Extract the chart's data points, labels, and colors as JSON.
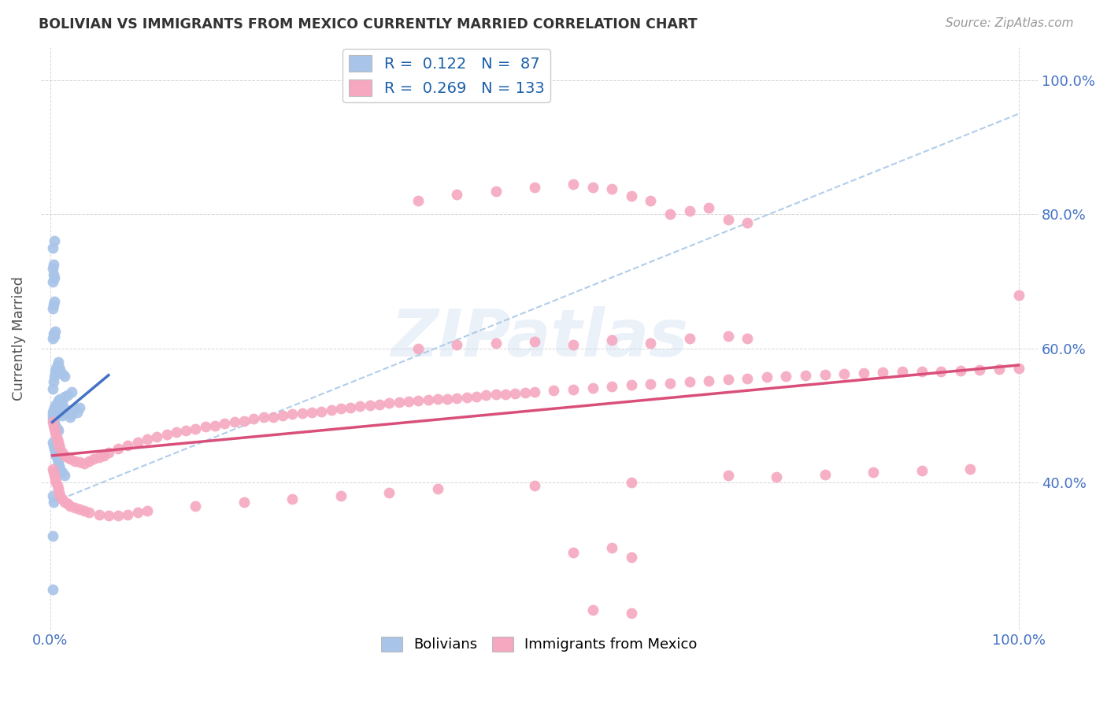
{
  "title": "BOLIVIAN VS IMMIGRANTS FROM MEXICO CURRENTLY MARRIED CORRELATION CHART",
  "source": "Source: ZipAtlas.com",
  "ylabel": "Currently Married",
  "legend_1_label": "Bolivians",
  "legend_2_label": "Immigrants from Mexico",
  "R1": 0.122,
  "N1": 87,
  "R2": 0.269,
  "N2": 133,
  "color_blue": "#a8c4e8",
  "color_pink": "#f5a8c0",
  "line_blue": "#4472c4",
  "line_pink": "#d94f7a",
  "line_dash_color": "#a8c8e8",
  "watermark": "ZIPatlas",
  "xlim": [
    0.0,
    1.0
  ],
  "ylim": [
    0.18,
    1.05
  ],
  "x_ticks": [
    0.0,
    1.0
  ],
  "y_ticks": [
    0.4,
    0.6,
    0.8,
    1.0
  ],
  "blue_scatter": [
    [
      0.002,
      0.5
    ],
    [
      0.003,
      0.505
    ],
    [
      0.004,
      0.512
    ],
    [
      0.005,
      0.498
    ],
    [
      0.006,
      0.51
    ],
    [
      0.007,
      0.505
    ],
    [
      0.008,
      0.502
    ],
    [
      0.009,
      0.515
    ],
    [
      0.01,
      0.508
    ],
    [
      0.012,
      0.5
    ],
    [
      0.015,
      0.51
    ],
    [
      0.018,
      0.505
    ],
    [
      0.02,
      0.498
    ],
    [
      0.022,
      0.502
    ],
    [
      0.025,
      0.51
    ],
    [
      0.028,
      0.505
    ],
    [
      0.03,
      0.512
    ],
    [
      0.002,
      0.495
    ],
    [
      0.003,
      0.49
    ],
    [
      0.004,
      0.488
    ],
    [
      0.005,
      0.485
    ],
    [
      0.006,
      0.482
    ],
    [
      0.007,
      0.48
    ],
    [
      0.008,
      0.478
    ],
    [
      0.002,
      0.505
    ],
    [
      0.003,
      0.508
    ],
    [
      0.004,
      0.502
    ],
    [
      0.005,
      0.515
    ],
    [
      0.006,
      0.512
    ],
    [
      0.007,
      0.518
    ],
    [
      0.008,
      0.522
    ],
    [
      0.01,
      0.525
    ],
    [
      0.012,
      0.52
    ],
    [
      0.015,
      0.528
    ],
    [
      0.018,
      0.53
    ],
    [
      0.022,
      0.535
    ],
    [
      0.002,
      0.54
    ],
    [
      0.003,
      0.55
    ],
    [
      0.004,
      0.558
    ],
    [
      0.005,
      0.565
    ],
    [
      0.006,
      0.57
    ],
    [
      0.007,
      0.575
    ],
    [
      0.008,
      0.58
    ],
    [
      0.009,
      0.572
    ],
    [
      0.01,
      0.568
    ],
    [
      0.012,
      0.562
    ],
    [
      0.015,
      0.558
    ],
    [
      0.002,
      0.615
    ],
    [
      0.003,
      0.622
    ],
    [
      0.004,
      0.618
    ],
    [
      0.005,
      0.625
    ],
    [
      0.002,
      0.66
    ],
    [
      0.003,
      0.665
    ],
    [
      0.004,
      0.67
    ],
    [
      0.002,
      0.7
    ],
    [
      0.003,
      0.71
    ],
    [
      0.004,
      0.705
    ],
    [
      0.002,
      0.72
    ],
    [
      0.003,
      0.725
    ],
    [
      0.002,
      0.75
    ],
    [
      0.004,
      0.76
    ],
    [
      0.002,
      0.46
    ],
    [
      0.003,
      0.455
    ],
    [
      0.004,
      0.45
    ],
    [
      0.005,
      0.445
    ],
    [
      0.006,
      0.44
    ],
    [
      0.007,
      0.435
    ],
    [
      0.008,
      0.43
    ],
    [
      0.009,
      0.425
    ],
    [
      0.01,
      0.42
    ],
    [
      0.012,
      0.415
    ],
    [
      0.015,
      0.41
    ],
    [
      0.002,
      0.38
    ],
    [
      0.003,
      0.37
    ],
    [
      0.002,
      0.32
    ],
    [
      0.002,
      0.24
    ]
  ],
  "pink_scatter": [
    [
      0.002,
      0.49
    ],
    [
      0.003,
      0.485
    ],
    [
      0.004,
      0.48
    ],
    [
      0.005,
      0.475
    ],
    [
      0.006,
      0.47
    ],
    [
      0.007,
      0.465
    ],
    [
      0.008,
      0.46
    ],
    [
      0.009,
      0.455
    ],
    [
      0.01,
      0.45
    ],
    [
      0.012,
      0.445
    ],
    [
      0.015,
      0.44
    ],
    [
      0.018,
      0.438
    ],
    [
      0.02,
      0.435
    ],
    [
      0.025,
      0.432
    ],
    [
      0.03,
      0.43
    ],
    [
      0.035,
      0.428
    ],
    [
      0.04,
      0.432
    ],
    [
      0.045,
      0.435
    ],
    [
      0.05,
      0.438
    ],
    [
      0.055,
      0.44
    ],
    [
      0.06,
      0.445
    ],
    [
      0.07,
      0.45
    ],
    [
      0.08,
      0.455
    ],
    [
      0.09,
      0.46
    ],
    [
      0.1,
      0.465
    ],
    [
      0.11,
      0.468
    ],
    [
      0.12,
      0.472
    ],
    [
      0.13,
      0.475
    ],
    [
      0.14,
      0.478
    ],
    [
      0.15,
      0.48
    ],
    [
      0.16,
      0.483
    ],
    [
      0.17,
      0.485
    ],
    [
      0.18,
      0.488
    ],
    [
      0.19,
      0.49
    ],
    [
      0.2,
      0.492
    ],
    [
      0.21,
      0.495
    ],
    [
      0.22,
      0.497
    ],
    [
      0.23,
      0.498
    ],
    [
      0.24,
      0.5
    ],
    [
      0.25,
      0.502
    ],
    [
      0.26,
      0.503
    ],
    [
      0.27,
      0.505
    ],
    [
      0.28,
      0.506
    ],
    [
      0.29,
      0.508
    ],
    [
      0.3,
      0.51
    ],
    [
      0.31,
      0.512
    ],
    [
      0.32,
      0.514
    ],
    [
      0.33,
      0.515
    ],
    [
      0.34,
      0.516
    ],
    [
      0.35,
      0.518
    ],
    [
      0.36,
      0.52
    ],
    [
      0.37,
      0.521
    ],
    [
      0.38,
      0.522
    ],
    [
      0.39,
      0.523
    ],
    [
      0.4,
      0.524
    ],
    [
      0.41,
      0.525
    ],
    [
      0.42,
      0.526
    ],
    [
      0.43,
      0.527
    ],
    [
      0.44,
      0.528
    ],
    [
      0.45,
      0.53
    ],
    [
      0.46,
      0.531
    ],
    [
      0.47,
      0.532
    ],
    [
      0.48,
      0.533
    ],
    [
      0.49,
      0.534
    ],
    [
      0.5,
      0.535
    ],
    [
      0.52,
      0.537
    ],
    [
      0.54,
      0.539
    ],
    [
      0.56,
      0.541
    ],
    [
      0.58,
      0.543
    ],
    [
      0.6,
      0.545
    ],
    [
      0.62,
      0.547
    ],
    [
      0.64,
      0.548
    ],
    [
      0.66,
      0.55
    ],
    [
      0.68,
      0.552
    ],
    [
      0.7,
      0.554
    ],
    [
      0.72,
      0.555
    ],
    [
      0.74,
      0.557
    ],
    [
      0.76,
      0.558
    ],
    [
      0.78,
      0.56
    ],
    [
      0.8,
      0.561
    ],
    [
      0.82,
      0.562
    ],
    [
      0.84,
      0.563
    ],
    [
      0.86,
      0.564
    ],
    [
      0.88,
      0.565
    ],
    [
      0.9,
      0.565
    ],
    [
      0.92,
      0.566
    ],
    [
      0.94,
      0.567
    ],
    [
      0.96,
      0.568
    ],
    [
      0.98,
      0.569
    ],
    [
      1.0,
      0.57
    ],
    [
      0.002,
      0.42
    ],
    [
      0.003,
      0.415
    ],
    [
      0.004,
      0.41
    ],
    [
      0.005,
      0.405
    ],
    [
      0.006,
      0.4
    ],
    [
      0.007,
      0.395
    ],
    [
      0.008,
      0.39
    ],
    [
      0.009,
      0.385
    ],
    [
      0.01,
      0.38
    ],
    [
      0.012,
      0.375
    ],
    [
      0.015,
      0.37
    ],
    [
      0.018,
      0.368
    ],
    [
      0.02,
      0.365
    ],
    [
      0.025,
      0.362
    ],
    [
      0.03,
      0.36
    ],
    [
      0.035,
      0.358
    ],
    [
      0.04,
      0.355
    ],
    [
      0.05,
      0.352
    ],
    [
      0.06,
      0.35
    ],
    [
      0.07,
      0.35
    ],
    [
      0.08,
      0.352
    ],
    [
      0.09,
      0.355
    ],
    [
      0.1,
      0.358
    ],
    [
      0.15,
      0.365
    ],
    [
      0.2,
      0.37
    ],
    [
      0.25,
      0.375
    ],
    [
      0.3,
      0.38
    ],
    [
      0.35,
      0.385
    ],
    [
      0.4,
      0.39
    ],
    [
      0.5,
      0.395
    ],
    [
      0.6,
      0.4
    ],
    [
      0.7,
      0.41
    ],
    [
      0.75,
      0.408
    ],
    [
      0.8,
      0.412
    ],
    [
      0.85,
      0.415
    ],
    [
      0.9,
      0.418
    ],
    [
      0.95,
      0.42
    ],
    [
      0.38,
      0.6
    ],
    [
      0.42,
      0.605
    ],
    [
      0.46,
      0.608
    ],
    [
      0.5,
      0.61
    ],
    [
      0.54,
      0.605
    ],
    [
      0.58,
      0.612
    ],
    [
      0.62,
      0.608
    ],
    [
      0.66,
      0.615
    ],
    [
      0.7,
      0.618
    ],
    [
      0.72,
      0.615
    ],
    [
      0.38,
      0.82
    ],
    [
      0.42,
      0.83
    ],
    [
      0.46,
      0.835
    ],
    [
      0.5,
      0.84
    ],
    [
      0.54,
      0.845
    ],
    [
      0.56,
      0.84
    ],
    [
      0.58,
      0.838
    ],
    [
      0.6,
      0.828
    ],
    [
      0.62,
      0.82
    ],
    [
      0.64,
      0.8
    ],
    [
      0.66,
      0.805
    ],
    [
      0.68,
      0.81
    ],
    [
      0.7,
      0.792
    ],
    [
      0.72,
      0.788
    ],
    [
      0.54,
      0.295
    ],
    [
      0.58,
      0.302
    ],
    [
      0.6,
      0.288
    ],
    [
      0.56,
      0.21
    ],
    [
      0.6,
      0.205
    ],
    [
      1.0,
      0.68
    ]
  ],
  "blue_line_x": [
    0.002,
    0.06
  ],
  "blue_line_y": [
    0.49,
    0.56
  ],
  "pink_line_x": [
    0.002,
    1.0
  ],
  "pink_line_y": [
    0.44,
    0.575
  ],
  "dash_line_x": [
    0.002,
    1.0
  ],
  "dash_line_y": [
    0.37,
    0.95
  ]
}
